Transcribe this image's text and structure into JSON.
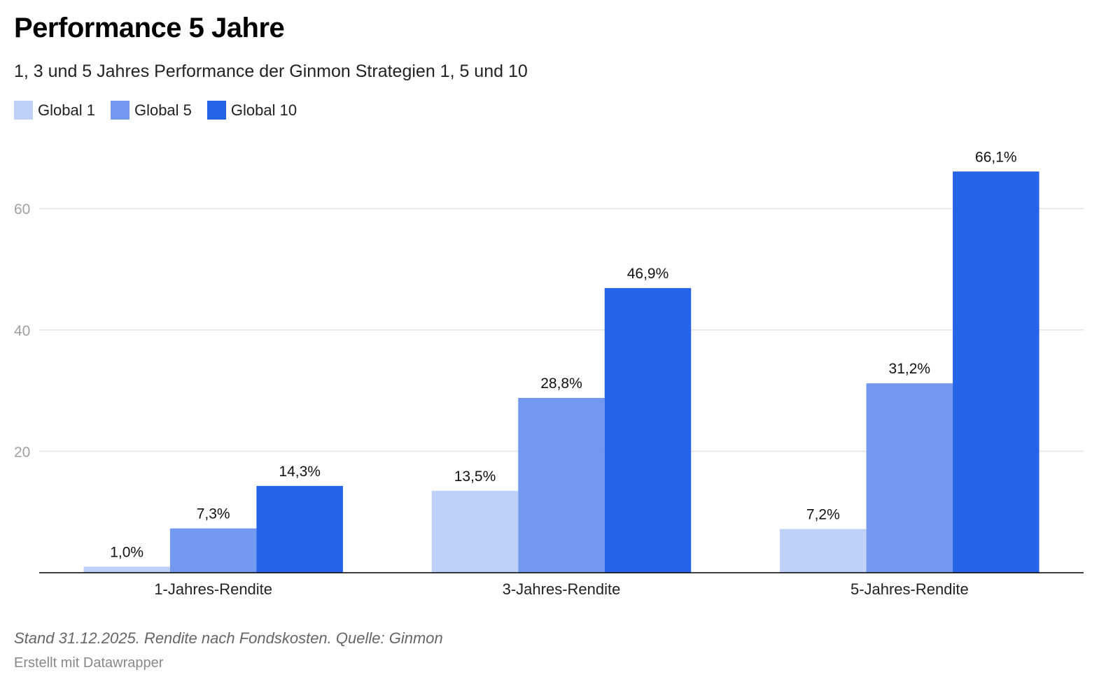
{
  "chart_data": {
    "type": "bar",
    "title": "Performance 5 Jahre",
    "subtitle": "1, 3 und 5 Jahres Performance der Ginmon Strategien 1, 5 und 10",
    "categories": [
      "1-Jahres-Rendite",
      "3-Jahres-Rendite",
      "5-Jahres-Rendite"
    ],
    "series": [
      {
        "name": "Global 1",
        "color": "#bfd0f9",
        "values": [
          1.0,
          13.5,
          7.2
        ],
        "labels": [
          "1,0%",
          "13,5%",
          "7,2%"
        ]
      },
      {
        "name": "Global 5",
        "color": "#7299ef",
        "values": [
          7.3,
          28.8,
          31.2
        ],
        "labels": [
          "7,3%",
          "28,8%",
          "31,2%"
        ]
      },
      {
        "name": "Global 10",
        "color": "#2563e8",
        "values": [
          14.3,
          46.9,
          66.1
        ],
        "labels": [
          "14,3%",
          "46,9%",
          "66,1%"
        ]
      }
    ],
    "ylim": [
      0,
      70
    ],
    "yticks": [
      20,
      40,
      60
    ],
    "ytick_labels": [
      "20",
      "40",
      "60"
    ],
    "xlabel": "",
    "ylabel": "",
    "grid": true,
    "legend": "top-left"
  },
  "footer": {
    "note": "Stand 31.12.2025. Rendite nach Fondskosten. Quelle: Ginmon",
    "credit": "Erstellt mit Datawrapper"
  }
}
